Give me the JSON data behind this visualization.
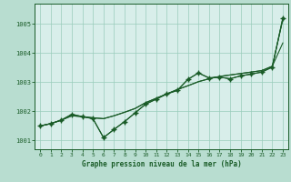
{
  "bg_color": "#b8ddd0",
  "plot_bg_color": "#d8eeea",
  "grid_color": "#99ccbb",
  "line_color": "#1a5c28",
  "xlabel": "Graphe pression niveau de la mer (hPa)",
  "xlim": [
    -0.5,
    23.5
  ],
  "ylim": [
    1000.7,
    1005.7
  ],
  "yticks": [
    1001,
    1002,
    1003,
    1004,
    1005
  ],
  "xticks": [
    0,
    1,
    2,
    3,
    4,
    5,
    6,
    7,
    8,
    9,
    10,
    11,
    12,
    13,
    14,
    15,
    16,
    17,
    18,
    19,
    20,
    21,
    22,
    23
  ],
  "series": {
    "line_straight": [
      1001.5,
      1001.58,
      1001.7,
      1001.85,
      1001.82,
      1001.78,
      1001.75,
      1001.85,
      1001.97,
      1002.1,
      1002.3,
      1002.45,
      1002.6,
      1002.75,
      1002.88,
      1003.02,
      1003.12,
      1003.2,
      1003.25,
      1003.3,
      1003.35,
      1003.4,
      1003.55,
      1005.15
    ],
    "line_straight2": [
      1001.5,
      1001.58,
      1001.7,
      1001.85,
      1001.82,
      1001.78,
      1001.75,
      1001.85,
      1001.97,
      1002.1,
      1002.3,
      1002.45,
      1002.6,
      1002.75,
      1002.88,
      1003.02,
      1003.12,
      1003.2,
      1003.25,
      1003.3,
      1003.35,
      1003.4,
      1003.55,
      1004.35
    ],
    "line_jagged": [
      1001.5,
      1001.58,
      1001.7,
      1001.9,
      1001.82,
      1001.75,
      1001.1,
      1001.38,
      1001.65,
      1001.95,
      1002.25,
      1002.42,
      1002.6,
      1002.72,
      1003.1,
      1003.32,
      1003.15,
      1003.18,
      1003.12,
      1003.22,
      1003.28,
      1003.35,
      1003.52,
      1005.2
    ],
    "line_top": [
      1001.5,
      1001.58,
      1001.7,
      1001.9,
      1001.82,
      1001.75,
      1001.1,
      1001.38,
      1001.65,
      1001.95,
      1002.25,
      1002.42,
      1002.6,
      1002.72,
      1003.1,
      1003.32,
      1003.15,
      1003.18,
      1003.12,
      1003.22,
      1003.28,
      1003.35,
      1003.52,
      1005.2
    ]
  }
}
